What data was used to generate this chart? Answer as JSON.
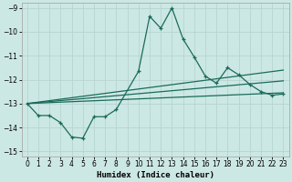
{
  "xlabel": "Humidex (Indice chaleur)",
  "xlim": [
    -0.5,
    23.5
  ],
  "ylim": [
    -15.2,
    -8.8
  ],
  "yticks": [
    -15,
    -14,
    -13,
    -12,
    -11,
    -10,
    -9
  ],
  "xticks": [
    0,
    1,
    2,
    3,
    4,
    5,
    6,
    7,
    8,
    9,
    10,
    11,
    12,
    13,
    14,
    15,
    16,
    17,
    18,
    19,
    20,
    21,
    22,
    23
  ],
  "bg_color": "#cce8e4",
  "grid_color": "#b8d4d0",
  "line_color": "#1a6b5a",
  "main_x": [
    0,
    1,
    2,
    3,
    4,
    5,
    6,
    7,
    8,
    10,
    11,
    12,
    13,
    14,
    15,
    16,
    17,
    18,
    19,
    20,
    21,
    22,
    23
  ],
  "main_y": [
    -13.0,
    -13.5,
    -13.5,
    -13.8,
    -14.4,
    -14.45,
    -13.55,
    -13.55,
    -13.25,
    -11.65,
    -9.35,
    -9.85,
    -9.0,
    -10.3,
    -11.05,
    -11.85,
    -12.15,
    -11.5,
    -11.8,
    -12.2,
    -12.5,
    -12.65,
    -12.6
  ],
  "trend1_x": [
    0,
    23
  ],
  "trend1_y": [
    -13.0,
    -12.55
  ],
  "trend2_x": [
    0,
    23
  ],
  "trend2_y": [
    -13.0,
    -12.05
  ],
  "trend3_x": [
    0,
    23
  ],
  "trend3_y": [
    -13.0,
    -11.6
  ]
}
